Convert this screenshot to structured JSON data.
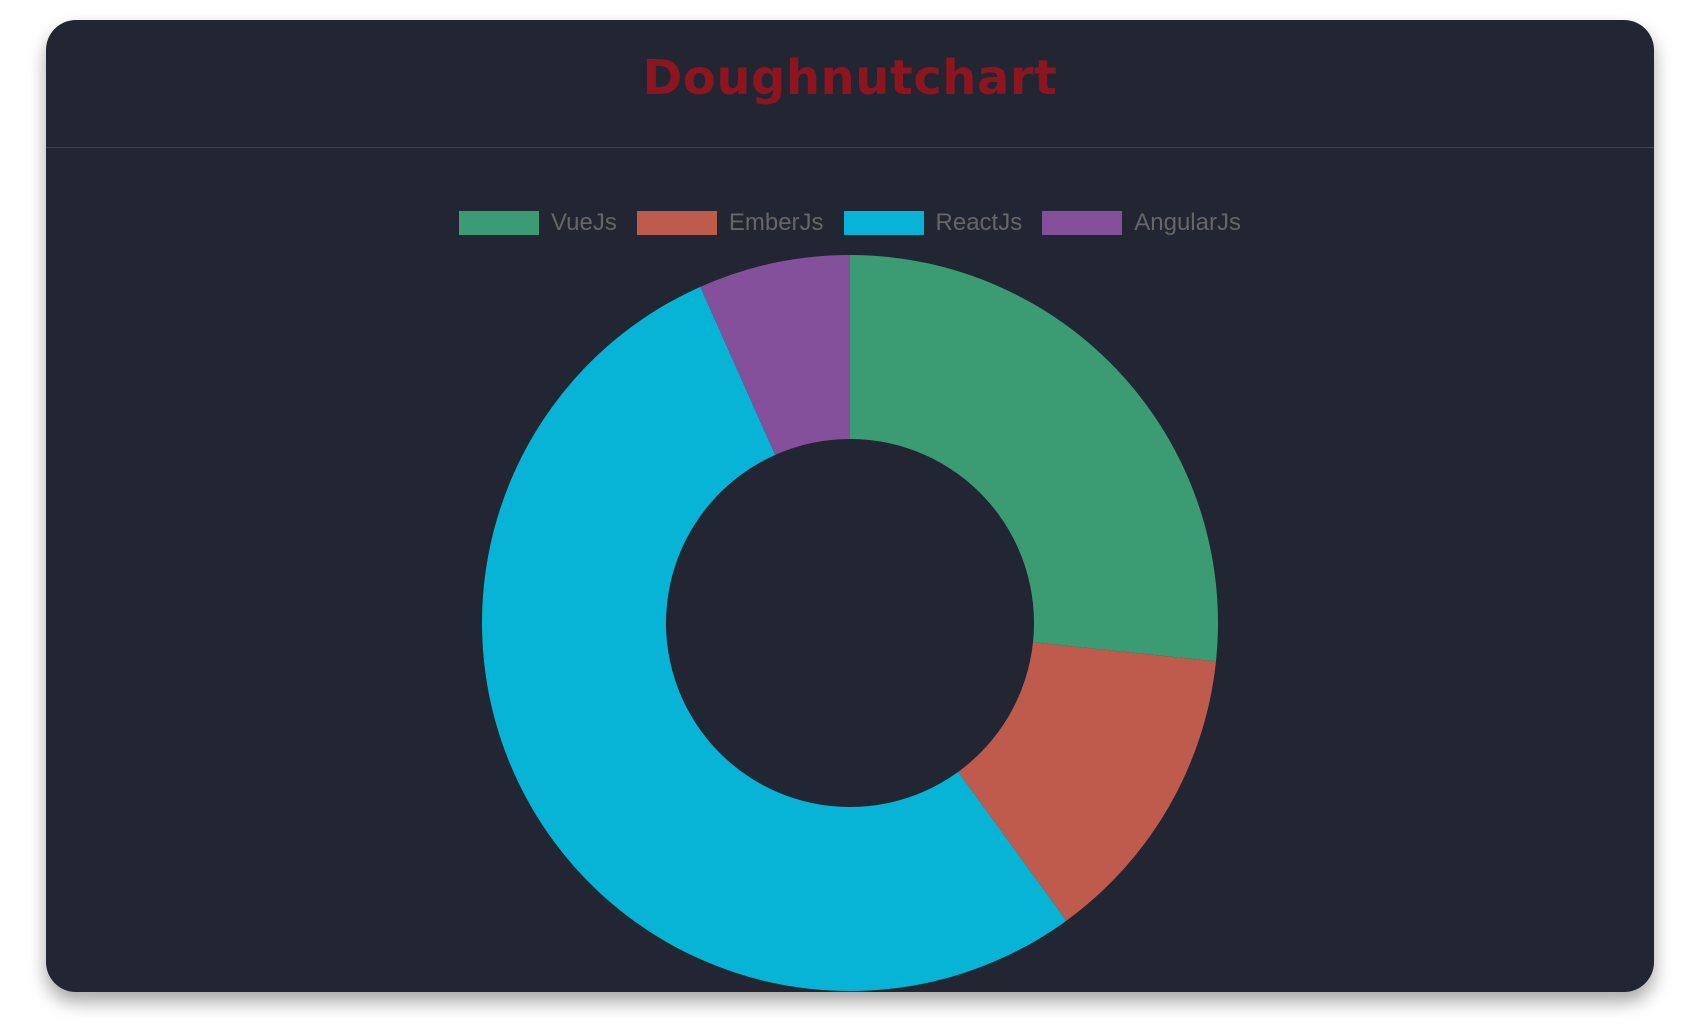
{
  "chart_data": {
    "type": "doughnut",
    "title": "Doughnutchart",
    "categories": [
      "VueJs",
      "EmberJs",
      "ReactJs",
      "AngularJs"
    ],
    "values": [
      4,
      2,
      8,
      1
    ],
    "colors": [
      "#3b9b73",
      "#bf5b4c",
      "#07b4d6",
      "#844f9b"
    ],
    "legend_position": "top"
  },
  "theme": {
    "background": "#212632",
    "title_color": "#8c1520"
  }
}
